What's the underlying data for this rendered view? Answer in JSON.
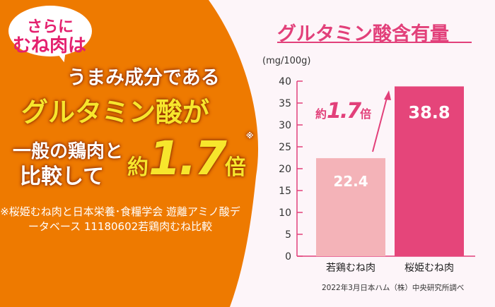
{
  "colors": {
    "orange": "#ee7a00",
    "yellow": "#f7e62c",
    "pink": "#e2407a",
    "bar_light": "#f4b3b8",
    "bar_dark": "#e5457a",
    "background": "#fdf5f9"
  },
  "bubble": {
    "line1": "さらに",
    "line2": "むね肉は"
  },
  "headline": {
    "line1": "うまみ成分である",
    "line2": "グルタミン酸が",
    "line3": "一般の鶏肉と",
    "line4": "比較して",
    "ratio_prefix": "約",
    "ratio_value": "1.7",
    "ratio_suffix": "倍",
    "ratio_mark": "※"
  },
  "note": "※桜姫むね肉と日本栄養･食糧学会 遊離アミノ酸データベース 11180602若鶏肉むね比較",
  "chart_data": {
    "type": "bar",
    "title": "グルタミン酸含有量",
    "ylabel": "(mg/100g)",
    "xlabel": "",
    "categories": [
      "若鶏むね肉",
      "桜姫むね肉"
    ],
    "values": [
      22.4,
      38.8
    ],
    "data_labels": [
      "22.4",
      "38.8"
    ],
    "ylim": [
      0,
      40
    ],
    "yticks": [
      0,
      5,
      10,
      15,
      20,
      25,
      30,
      35,
      40
    ],
    "grid": false,
    "annotation": {
      "prefix": "約",
      "value": "1.7",
      "suffix": "倍"
    },
    "source": "2022年3月日本ハム（株）中央研究所調べ"
  }
}
